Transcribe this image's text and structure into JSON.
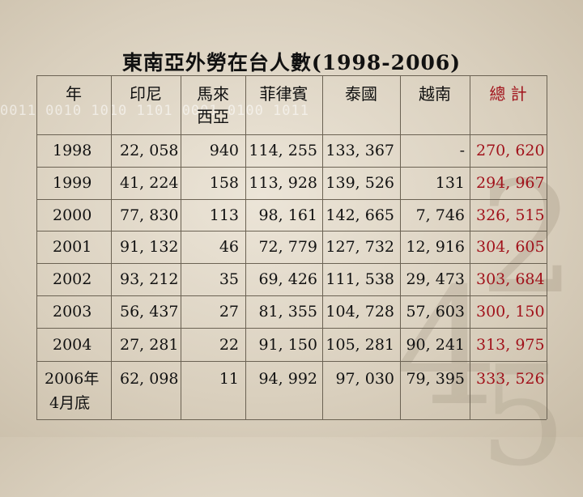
{
  "title": "東南亞外勞在台人數(1998-2006)",
  "background_binary": "0011 0010 1010 1101 0001 0100 1011",
  "background_digits": [
    "2",
    "4",
    "5"
  ],
  "colors": {
    "total": "#a1121b",
    "text": "#111111"
  },
  "headers": {
    "year": "年",
    "indonesia": "印尼",
    "malaysia_line1": "馬來",
    "malaysia_line2": "西亞",
    "philippines": "菲律賓",
    "thailand": "泰國",
    "vietnam": "越南",
    "total": "總 計"
  },
  "rows": [
    {
      "year": "1998",
      "indonesia": "22, 058",
      "malaysia": "940",
      "philippines": "114, 255",
      "thailand": "133, 367",
      "vietnam": "-",
      "total": "270, 620"
    },
    {
      "year": "1999",
      "indonesia": "41, 224",
      "malaysia": "158",
      "philippines": "113, 928",
      "thailand": "139, 526",
      "vietnam": "131",
      "total": "294, 967"
    },
    {
      "year": "2000",
      "indonesia": "77, 830",
      "malaysia": "113",
      "philippines": "98, 161",
      "thailand": "142, 665",
      "vietnam": "7, 746",
      "total": "326, 515"
    },
    {
      "year": "2001",
      "indonesia": "91, 132",
      "malaysia": "46",
      "philippines": "72, 779",
      "thailand": "127, 732",
      "vietnam": "12, 916",
      "total": "304, 605"
    },
    {
      "year": "2002",
      "indonesia": "93, 212",
      "malaysia": "35",
      "philippines": "69, 426",
      "thailand": "111, 538",
      "vietnam": "29, 473",
      "total": "303, 684"
    },
    {
      "year": "2003",
      "indonesia": "56, 437",
      "malaysia": "27",
      "philippines": "81, 355",
      "thailand": "104, 728",
      "vietnam": "57, 603",
      "total": "300, 150"
    },
    {
      "year": "2004",
      "indonesia": "27, 281",
      "malaysia": "22",
      "philippines": "91, 150",
      "thailand": "105, 281",
      "vietnam": "90, 241",
      "total": "313, 975"
    },
    {
      "year": "2006年",
      "year_line2": "4月底",
      "indonesia": "62, 098",
      "malaysia": "11",
      "philippines": "94, 992",
      "thailand": "97, 030",
      "vietnam": "79, 395",
      "total": "333, 526"
    }
  ]
}
